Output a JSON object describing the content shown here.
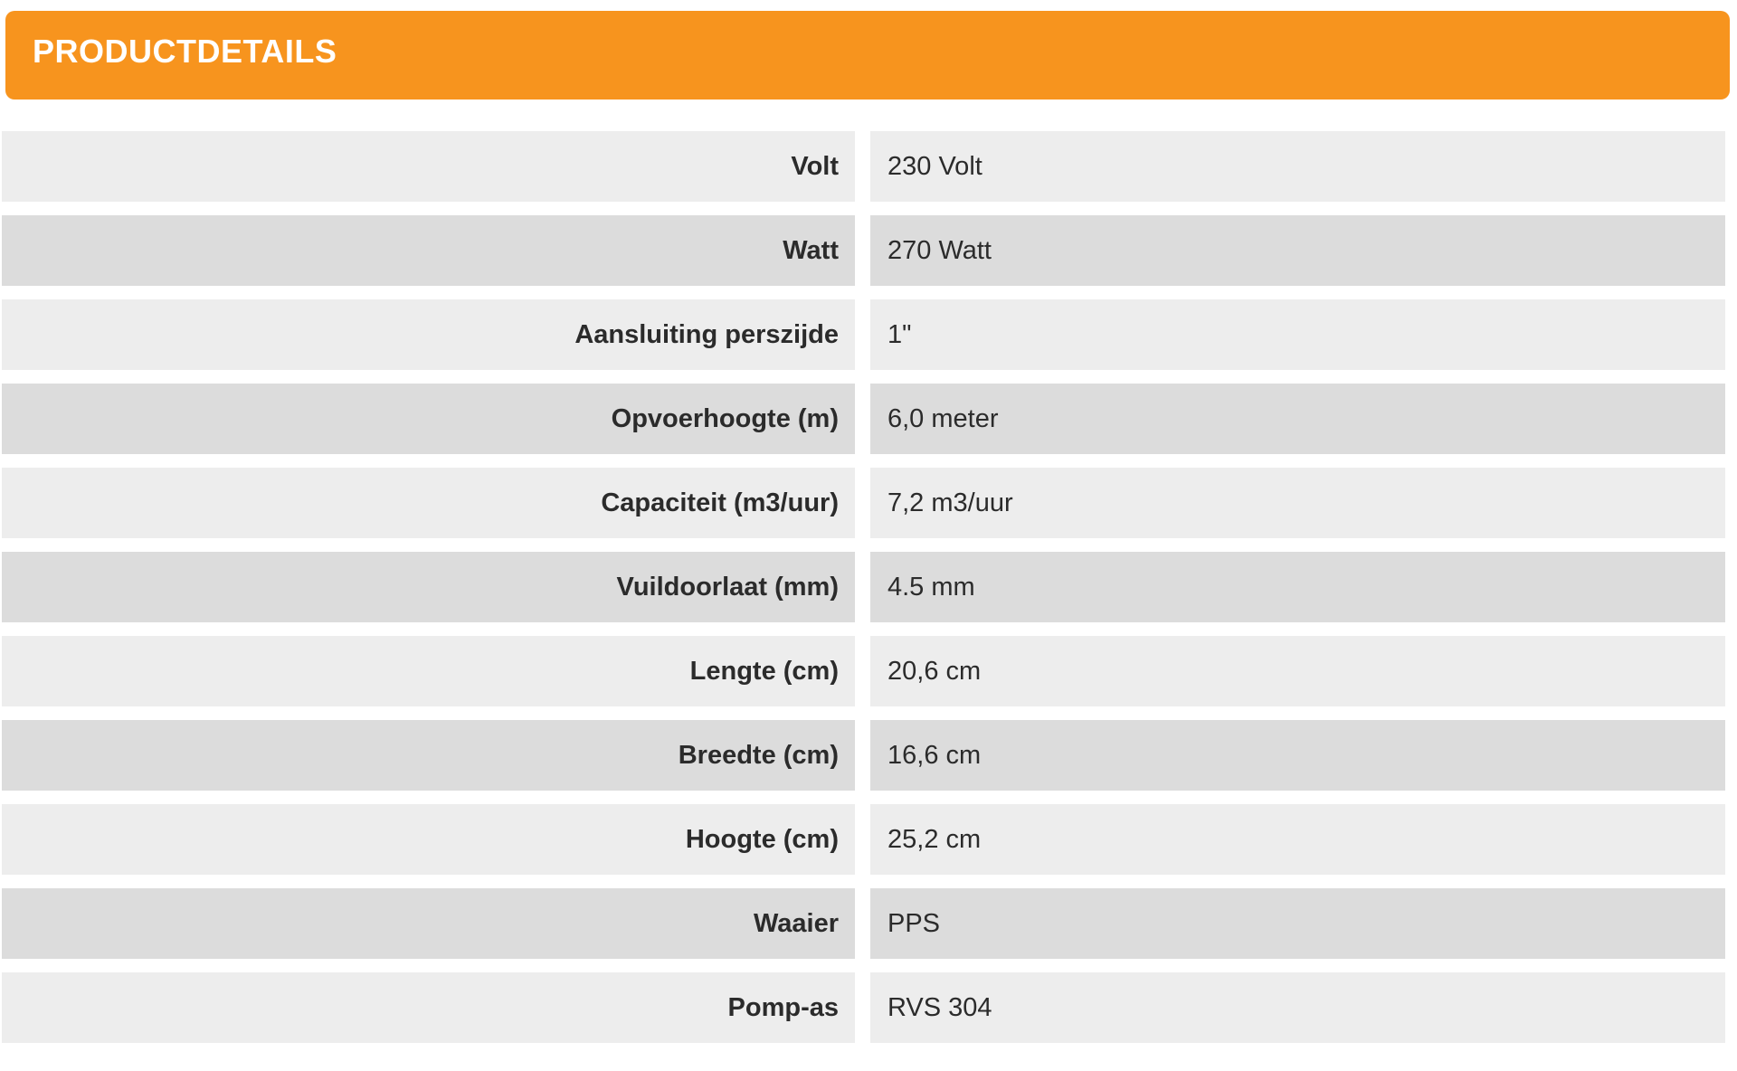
{
  "header": {
    "title": "PRODUCTDETAILS"
  },
  "table": {
    "rows": [
      {
        "label": "Volt",
        "value": "230 Volt"
      },
      {
        "label": "Watt",
        "value": "270 Watt"
      },
      {
        "label": "Aansluiting perszijde",
        "value": "1\""
      },
      {
        "label": "Opvoerhoogte (m)",
        "value": "6,0 meter"
      },
      {
        "label": "Capaciteit (m3/uur)",
        "value": "7,2 m3/uur"
      },
      {
        "label": "Vuildoorlaat (mm)",
        "value": "4.5 mm"
      },
      {
        "label": "Lengte (cm)",
        "value": "20,6 cm"
      },
      {
        "label": "Breedte (cm)",
        "value": "16,6 cm"
      },
      {
        "label": "Hoogte (cm)",
        "value": "25,2 cm"
      },
      {
        "label": "Waaier",
        "value": "PPS"
      },
      {
        "label": "Pomp-as",
        "value": "RVS 304"
      }
    ]
  },
  "colors": {
    "accent": "#F7941E",
    "row_light": "#EDEDED",
    "row_dark": "#DCDCDC",
    "header_text": "#FFFFFF",
    "text": "#2B2B2B"
  }
}
